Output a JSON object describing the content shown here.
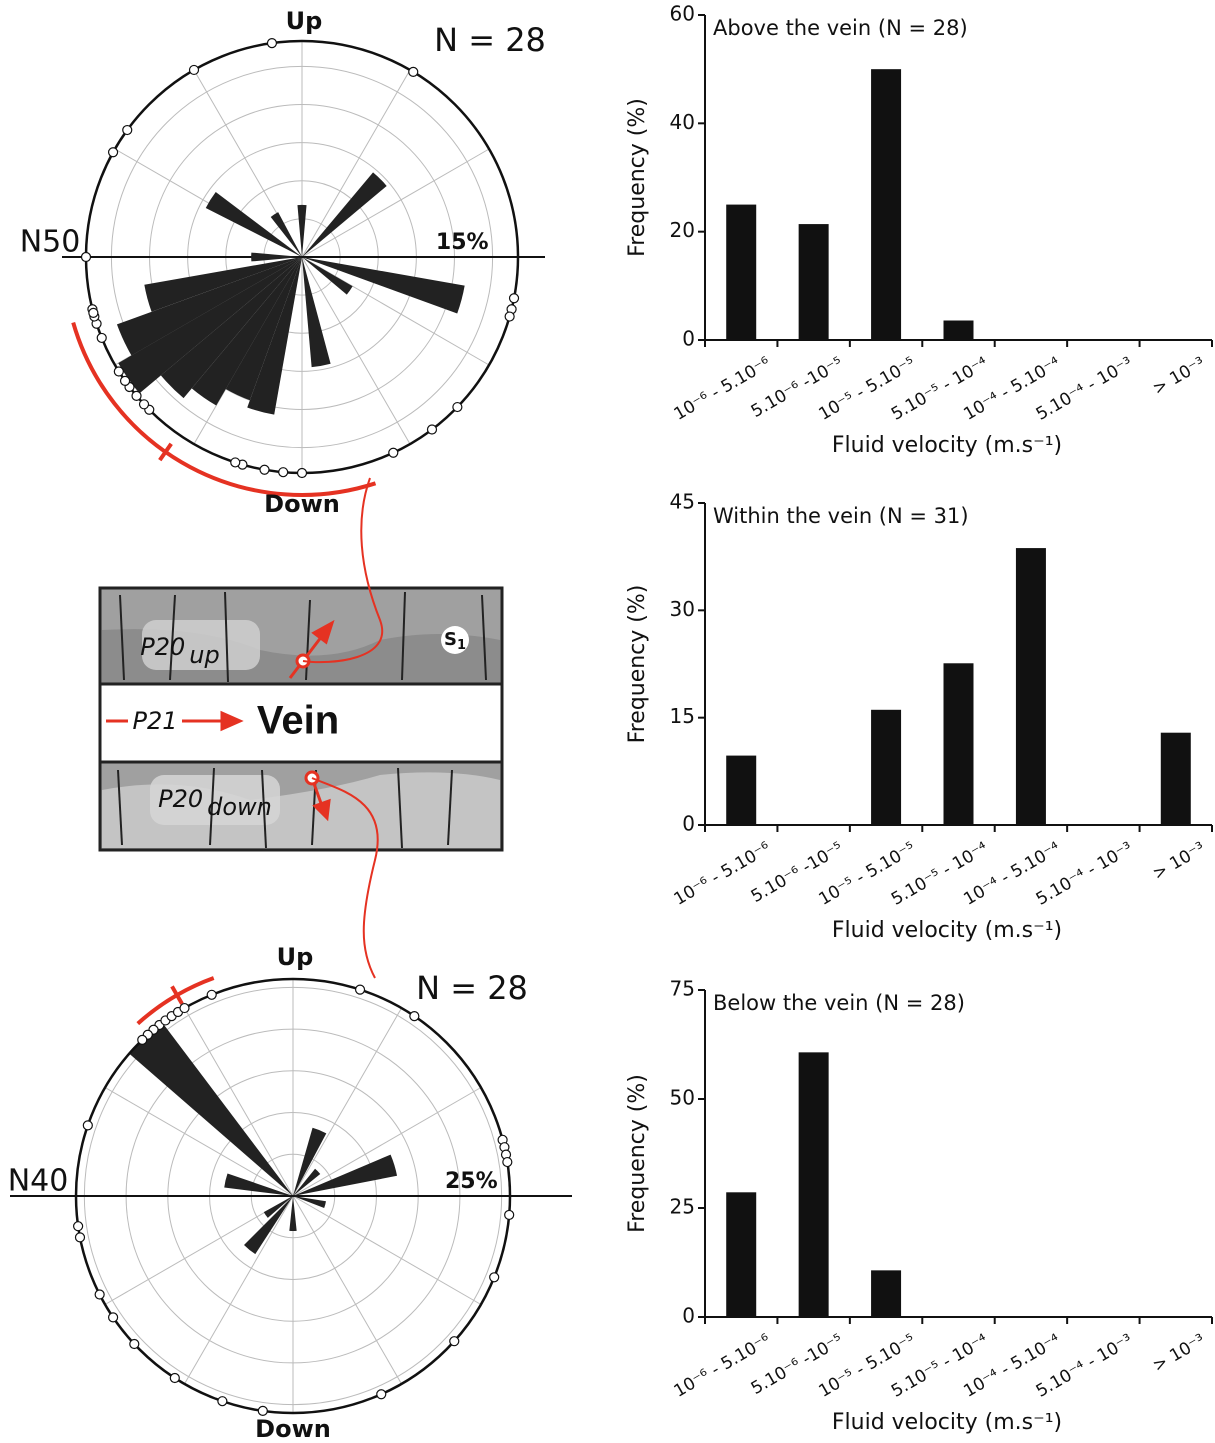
{
  "chart_data": [
    {
      "type": "rose",
      "title": "N = 28",
      "up_label": "Up",
      "down_label": "Down",
      "azimuth_label": "N50",
      "rlim": [
        0,
        17
      ],
      "rticks": [
        {
          "value": 15,
          "label": "15%"
        }
      ],
      "rgrid": 3,
      "sector_width": 10,
      "angles": [
        45,
        0,
        302,
        327,
        105,
        125,
        195,
        205,
        215,
        225,
        235,
        245,
        255,
        270,
        170
      ],
      "values": [
        8.7,
        4.1,
        8.5,
        4,
        13,
        4.6,
        12.6,
        12,
        13.5,
        14.5,
        16.7,
        15.5,
        12.6,
        4,
        8.7
      ],
      "color": "#222222",
      "measurements": [
        352,
        330,
        306,
        299,
        270,
        31,
        101,
        104,
        106,
        134,
        143,
        155,
        180,
        185,
        190,
        196,
        198,
        225,
        227,
        230,
        233,
        235,
        238,
        252,
        254,
        256,
        255,
        248
      ]
    },
    {
      "type": "rose",
      "title": "N = 28",
      "up_label": "Up",
      "down_label": "Down",
      "azimuth_label": "N40",
      "rlim": [
        0,
        26
      ],
      "rticks": [
        {
          "value": 25,
          "label": "25%"
        }
      ],
      "rgrid": 5,
      "sector_width": 12,
      "angles": [
        317,
        22,
        73,
        45,
        283,
        235,
        219,
        180,
        105
      ],
      "values": [
        26,
        8.5,
        12.7,
        4.2,
        8.3,
        4,
        8.3,
        4.2,
        4
      ],
      "color": "#222222",
      "measurements": [
        322,
        320,
        318,
        316,
        324,
        326,
        328,
        338,
        18,
        34,
        289,
        75,
        77,
        79,
        81,
        95,
        259,
        243,
        236,
        227,
        213,
        199,
        188,
        156,
        132,
        112,
        262,
        330
      ]
    },
    {
      "type": "bar",
      "title": "Above the vein (N = 28)",
      "xlabel": "Fluid velocity (m.s⁻¹)",
      "ylabel": "Frequency (%)",
      "categories": [
        "10⁻⁶ - 5.10⁻⁶",
        "5.10⁻⁶ -10⁻⁵",
        "10⁻⁵ - 5.10⁻⁵",
        "5.10⁻⁵ - 10⁻⁴",
        "10⁻⁴ - 5.10⁻⁴",
        "5.10⁻⁴ - 10⁻³",
        "> 10⁻³"
      ],
      "values": [
        25,
        21.4,
        50,
        3.6,
        0,
        0,
        0
      ],
      "color": "#111111",
      "ylim": [
        0,
        60
      ],
      "yticks": [
        0,
        20,
        40,
        60
      ]
    },
    {
      "type": "bar",
      "title": "Within the vein (N = 31)",
      "xlabel": "Fluid velocity (m.s⁻¹)",
      "ylabel": "Frequency (%)",
      "categories": [
        "10⁻⁶ - 5.10⁻⁶",
        "5.10⁻⁶ -10⁻⁵",
        "10⁻⁵ - 5.10⁻⁵",
        "5.10⁻⁵ - 10⁻⁴",
        "10⁻⁴ - 5.10⁻⁴",
        "5.10⁻⁴ - 10⁻³",
        "> 10⁻³"
      ],
      "values": [
        9.7,
        0,
        16.1,
        22.6,
        38.7,
        0,
        12.9
      ],
      "color": "#111111",
      "ylim": [
        0,
        45
      ],
      "yticks": [
        0,
        15,
        30,
        45
      ]
    },
    {
      "type": "bar",
      "title": "Below the vein (N = 28)",
      "xlabel": "Fluid velocity (m.s⁻¹)",
      "ylabel": "Frequency (%)",
      "categories": [
        "10⁻⁶ - 5.10⁻⁶",
        "5.10⁻⁶ -10⁻⁵",
        "10⁻⁵ - 5.10⁻⁵",
        "5.10⁻⁵ - 10⁻⁴",
        "10⁻⁴ - 5.10⁻⁴",
        "5.10⁻⁴ - 10⁻³",
        "> 10⁻³"
      ],
      "values": [
        28.6,
        60.7,
        10.7,
        0,
        0,
        0,
        0
      ],
      "color": "#111111",
      "ylim": [
        0,
        75
      ],
      "yticks": [
        0,
        25,
        50,
        75
      ]
    }
  ],
  "diagram": {
    "upper_label": "P20",
    "upper_sub": "up",
    "s_label": "S",
    "s_sub": "1",
    "flow_label": "P21",
    "vein_label": "Vein",
    "lower_label": "P20",
    "lower_sub": "down"
  }
}
